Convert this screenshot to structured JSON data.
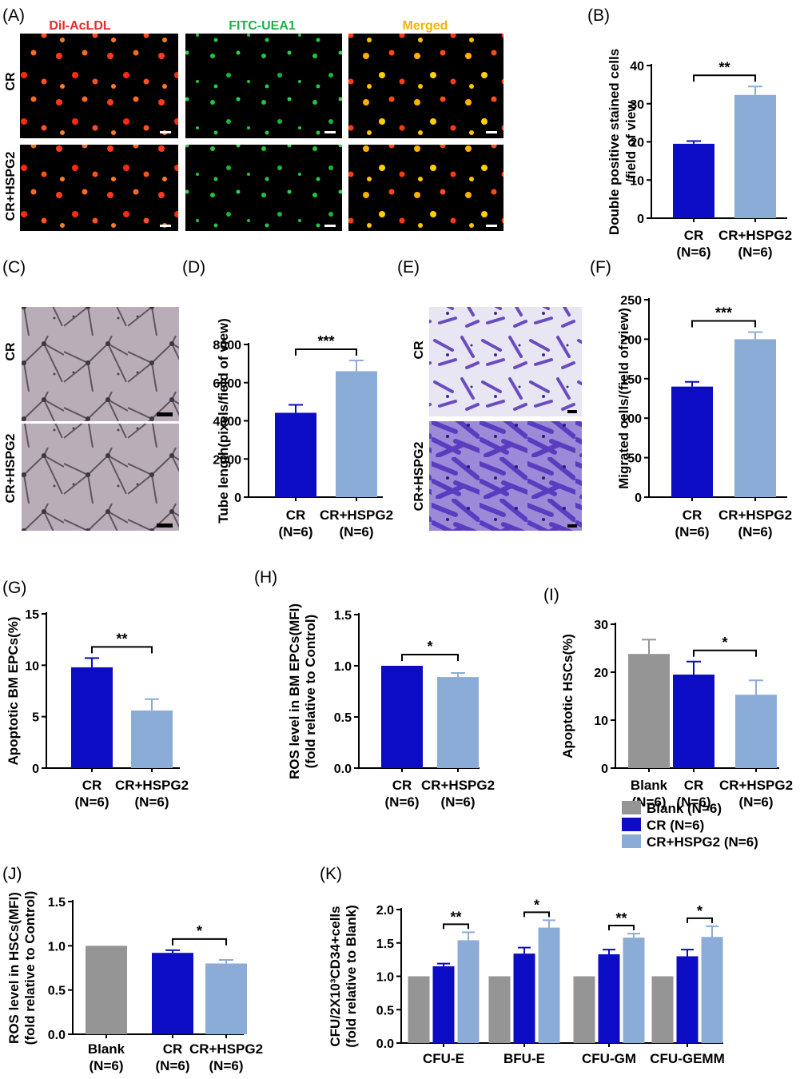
{
  "colors": {
    "blank": "#959595",
    "cr": "#0c0cc4",
    "hspg2": "#8cacd8",
    "red_title": "#e52b2b",
    "green_title": "#22b04a",
    "orange_title": "#f2b300"
  },
  "panel_A": {
    "label": "(A)",
    "column_titles": [
      "DiI-AcLDL",
      "FITC-UEA1",
      "Merged"
    ],
    "row_labels": [
      "CR",
      "CR+HSPG2"
    ]
  },
  "panel_C": {
    "label": "(C)",
    "row_labels": [
      "CR",
      "CR+HSPG2"
    ]
  },
  "panel_E": {
    "label": "(E)",
    "row_labels": [
      "CR",
      "CR+HSPG2"
    ]
  },
  "chart_data": [
    {
      "id": "B",
      "label": "(B)",
      "type": "bar",
      "ylabel": [
        "Double positive stained cells",
        "/field of view"
      ],
      "categories": [
        [
          "CR",
          "(N=6)"
        ],
        [
          "CR+HSPG2",
          "(N=6)"
        ]
      ],
      "values": [
        19.5,
        32.3
      ],
      "errors": [
        0.7,
        2.2
      ],
      "colors": [
        "cr",
        "hspg2"
      ],
      "ylim": [
        0,
        40
      ],
      "yticks": [
        0,
        10,
        20,
        30,
        40
      ],
      "significance": [
        {
          "from": 0,
          "to": 1,
          "label": "**"
        }
      ]
    },
    {
      "id": "D",
      "label": "(D)",
      "type": "bar",
      "ylabel": [
        "Tube length(pixels/field of view)"
      ],
      "categories": [
        [
          "CR",
          "(N=6)"
        ],
        [
          "CR+HSPG2",
          "(N=6)"
        ]
      ],
      "values": [
        4420,
        6600
      ],
      "errors": [
        420,
        560
      ],
      "colors": [
        "cr",
        "hspg2"
      ],
      "ylim": [
        0,
        8000
      ],
      "yticks": [
        0,
        2000,
        4000,
        6000,
        8000
      ],
      "significance": [
        {
          "from": 0,
          "to": 1,
          "label": "***"
        }
      ]
    },
    {
      "id": "F",
      "label": "(F)",
      "type": "bar",
      "ylabel": [
        "Migrated cells/(field of view)"
      ],
      "categories": [
        [
          "CR",
          "(N=6)"
        ],
        [
          "CR+HSPG2",
          "(N=6)"
        ]
      ],
      "values": [
        140,
        200
      ],
      "errors": [
        6,
        9
      ],
      "colors": [
        "cr",
        "hspg2"
      ],
      "ylim": [
        0,
        250
      ],
      "yticks": [
        0,
        50,
        100,
        150,
        200,
        250
      ],
      "significance": [
        {
          "from": 0,
          "to": 1,
          "label": "***"
        }
      ]
    },
    {
      "id": "G",
      "label": "(G)",
      "type": "bar",
      "ylabel": [
        "Apoptotic BM EPCs(%)"
      ],
      "categories": [
        [
          "CR",
          "(N=6)"
        ],
        [
          "CR+HSPG2",
          "(N=6)"
        ]
      ],
      "values": [
        9.8,
        5.6
      ],
      "errors": [
        0.9,
        1.1
      ],
      "colors": [
        "cr",
        "hspg2"
      ],
      "ylim": [
        0,
        15
      ],
      "yticks": [
        0,
        5,
        10,
        15
      ],
      "significance": [
        {
          "from": 0,
          "to": 1,
          "label": "**"
        }
      ]
    },
    {
      "id": "H",
      "label": "(H)",
      "type": "bar",
      "ylabel": [
        "ROS level in BM EPCs(MFI)",
        "(fold relative to Control)"
      ],
      "categories": [
        [
          "CR",
          "(N=6)"
        ],
        [
          "CR+HSPG2",
          "(N=6)"
        ]
      ],
      "values": [
        1.0,
        0.89
      ],
      "errors": [
        0,
        0.04
      ],
      "colors": [
        "cr",
        "hspg2"
      ],
      "ylim": [
        0,
        1.5
      ],
      "yticks": [
        "0.0",
        "0.5",
        "1.0",
        "1.5"
      ],
      "significance": [
        {
          "from": 0,
          "to": 1,
          "label": "*"
        }
      ]
    },
    {
      "id": "I",
      "label": "(I)",
      "type": "bar",
      "ylabel": [
        "Apoptotic HSCs(%)"
      ],
      "categories": [
        [
          "Blank",
          "(N=6)"
        ],
        [
          "CR",
          "(N=6)"
        ],
        [
          "CR+HSPG2",
          "(N=6)"
        ]
      ],
      "values": [
        23.8,
        19.5,
        15.3
      ],
      "errors": [
        3.0,
        2.7,
        3.0
      ],
      "colors": [
        "blank",
        "cr",
        "hspg2"
      ],
      "ylim": [
        0,
        30
      ],
      "yticks": [
        0,
        10,
        20,
        30
      ],
      "significance": [
        {
          "from": 1,
          "to": 2,
          "label": "*"
        }
      ]
    },
    {
      "id": "J",
      "label": "(J)",
      "type": "bar",
      "ylabel": [
        "ROS level in HSCs(MFI)",
        "(fold relative to Control)"
      ],
      "categories": [
        [
          "Blank",
          "(N=6)"
        ],
        [
          "CR",
          "(N=6)"
        ],
        [
          "CR+HSPG2",
          "(N=6)"
        ]
      ],
      "values": [
        1.0,
        0.92,
        0.8
      ],
      "errors": [
        0,
        0.03,
        0.04
      ],
      "colors": [
        "blank",
        "cr",
        "hspg2"
      ],
      "ylim": [
        0,
        1.5
      ],
      "yticks": [
        "0.0",
        "0.5",
        "1.0",
        "1.5"
      ],
      "significance": [
        {
          "from": 1,
          "to": 2,
          "label": "*"
        }
      ]
    },
    {
      "id": "K",
      "label": "(K)",
      "type": "bar",
      "ylabel": [
        "CFU/2X10³CD34+cells",
        "(fold relative to Blank)"
      ],
      "categories": [
        "CFU-E",
        "BFU-E",
        "CFU-GM",
        "CFU-GEMM"
      ],
      "series": [
        {
          "name": "Blank (N=6)",
          "color": "blank",
          "values": [
            1.0,
            1.0,
            1.0,
            1.0
          ],
          "errors": [
            0,
            0,
            0,
            0
          ]
        },
        {
          "name": "CR (N=6)",
          "color": "cr",
          "values": [
            1.15,
            1.34,
            1.33,
            1.3
          ],
          "errors": [
            0.04,
            0.09,
            0.07,
            0.1
          ]
        },
        {
          "name": "CR+HSPG2 (N=6)",
          "color": "hspg2",
          "values": [
            1.54,
            1.73,
            1.58,
            1.59
          ],
          "errors": [
            0.12,
            0.11,
            0.06,
            0.16
          ]
        }
      ],
      "ylim": [
        0,
        2.0
      ],
      "yticks": [
        "0.0",
        "0.5",
        "1.0",
        "1.5",
        "2.0"
      ],
      "legend": "top-right",
      "significance": [
        {
          "category": 0,
          "label": "**"
        },
        {
          "category": 1,
          "label": "*"
        },
        {
          "category": 2,
          "label": "**"
        },
        {
          "category": 3,
          "label": "*"
        }
      ]
    }
  ]
}
